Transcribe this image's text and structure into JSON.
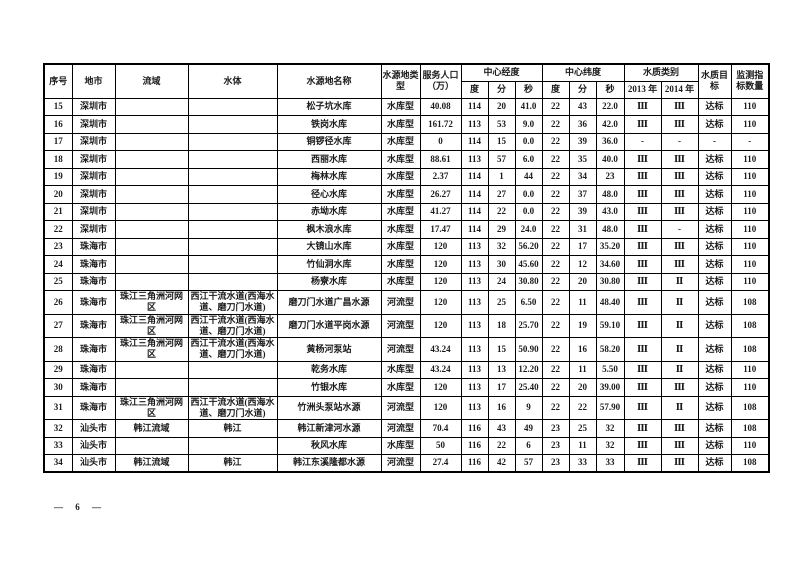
{
  "table": {
    "headers": {
      "no": "序号",
      "city": "地市",
      "basin": "流域",
      "water_body": "水体",
      "name": "水源地名称",
      "type": "水源地类型",
      "pop": "服务人口（万）",
      "longitude": "中心经度",
      "latitude": "中心纬度",
      "degree": "度",
      "minute": "分",
      "second": "秒",
      "quality": "水质类别",
      "y2013": "2013 年",
      "y2014": "2014 年",
      "target": "水质目标",
      "indicators": "监测指标数量"
    },
    "rows": [
      {
        "no": "15",
        "city": "深圳市",
        "basin": "",
        "water_body": "",
        "name": "松子坑水库",
        "type": "水库型",
        "pop": "40.08",
        "lon_d": "114",
        "lon_m": "20",
        "lon_s": "41.0",
        "lat_d": "22",
        "lat_m": "43",
        "lat_s": "22.0",
        "q2013": "Ⅲ",
        "q2014": "Ⅲ",
        "target": "达标",
        "indicators": "110"
      },
      {
        "no": "16",
        "city": "深圳市",
        "basin": "",
        "water_body": "",
        "name": "铁岗水库",
        "type": "水库型",
        "pop": "161.72",
        "lon_d": "113",
        "lon_m": "53",
        "lon_s": "9.0",
        "lat_d": "22",
        "lat_m": "36",
        "lat_s": "42.0",
        "q2013": "Ⅲ",
        "q2014": "Ⅲ",
        "target": "达标",
        "indicators": "110"
      },
      {
        "no": "17",
        "city": "深圳市",
        "basin": "",
        "water_body": "",
        "name": "铜锣径水库",
        "type": "水库型",
        "pop": "0",
        "lon_d": "114",
        "lon_m": "15",
        "lon_s": "0.0",
        "lat_d": "22",
        "lat_m": "39",
        "lat_s": "36.0",
        "q2013": "-",
        "q2014": "-",
        "target": "-",
        "indicators": "-"
      },
      {
        "no": "18",
        "city": "深圳市",
        "basin": "",
        "water_body": "",
        "name": "西丽水库",
        "type": "水库型",
        "pop": "88.61",
        "lon_d": "113",
        "lon_m": "57",
        "lon_s": "6.0",
        "lat_d": "22",
        "lat_m": "35",
        "lat_s": "40.0",
        "q2013": "Ⅲ",
        "q2014": "Ⅲ",
        "target": "达标",
        "indicators": "110"
      },
      {
        "no": "19",
        "city": "深圳市",
        "basin": "",
        "water_body": "",
        "name": "梅林水库",
        "type": "水库型",
        "pop": "2.37",
        "lon_d": "114",
        "lon_m": "1",
        "lon_s": "44",
        "lat_d": "22",
        "lat_m": "34",
        "lat_s": "23",
        "q2013": "Ⅲ",
        "q2014": "Ⅲ",
        "target": "达标",
        "indicators": "110"
      },
      {
        "no": "20",
        "city": "深圳市",
        "basin": "",
        "water_body": "",
        "name": "径心水库",
        "type": "水库型",
        "pop": "26.27",
        "lon_d": "114",
        "lon_m": "27",
        "lon_s": "0.0",
        "lat_d": "22",
        "lat_m": "37",
        "lat_s": "48.0",
        "q2013": "Ⅲ",
        "q2014": "Ⅲ",
        "target": "达标",
        "indicators": "110"
      },
      {
        "no": "21",
        "city": "深圳市",
        "basin": "",
        "water_body": "",
        "name": "赤坳水库",
        "type": "水库型",
        "pop": "41.27",
        "lon_d": "114",
        "lon_m": "22",
        "lon_s": "0.0",
        "lat_d": "22",
        "lat_m": "39",
        "lat_s": "43.0",
        "q2013": "Ⅲ",
        "q2014": "Ⅲ",
        "target": "达标",
        "indicators": "110"
      },
      {
        "no": "22",
        "city": "深圳市",
        "basin": "",
        "water_body": "",
        "name": "枫木浪水库",
        "type": "水库型",
        "pop": "17.47",
        "lon_d": "114",
        "lon_m": "29",
        "lon_s": "24.0",
        "lat_d": "22",
        "lat_m": "31",
        "lat_s": "48.0",
        "q2013": "Ⅲ",
        "q2014": "-",
        "target": "达标",
        "indicators": "110"
      },
      {
        "no": "23",
        "city": "珠海市",
        "basin": "",
        "water_body": "",
        "name": "大镜山水库",
        "type": "水库型",
        "pop": "120",
        "lon_d": "113",
        "lon_m": "32",
        "lon_s": "56.20",
        "lat_d": "22",
        "lat_m": "17",
        "lat_s": "35.20",
        "q2013": "Ⅲ",
        "q2014": "Ⅲ",
        "target": "达标",
        "indicators": "110"
      },
      {
        "no": "24",
        "city": "珠海市",
        "basin": "",
        "water_body": "",
        "name": "竹仙洞水库",
        "type": "水库型",
        "pop": "120",
        "lon_d": "113",
        "lon_m": "30",
        "lon_s": "45.60",
        "lat_d": "22",
        "lat_m": "12",
        "lat_s": "34.60",
        "q2013": "Ⅲ",
        "q2014": "Ⅲ",
        "target": "达标",
        "indicators": "110"
      },
      {
        "no": "25",
        "city": "珠海市",
        "basin": "",
        "water_body": "",
        "name": "杨寮水库",
        "type": "水库型",
        "pop": "120",
        "lon_d": "113",
        "lon_m": "24",
        "lon_s": "30.80",
        "lat_d": "22",
        "lat_m": "20",
        "lat_s": "30.80",
        "q2013": "Ⅲ",
        "q2014": "Ⅱ",
        "target": "达标",
        "indicators": "110"
      },
      {
        "no": "26",
        "city": "珠海市",
        "basin": "珠江三角洲河网区",
        "water_body": "西江干流水道(西海水道、磨刀门水道)",
        "name": "磨刀门水道广昌水源",
        "type": "河流型",
        "pop": "120",
        "lon_d": "113",
        "lon_m": "25",
        "lon_s": "6.50",
        "lat_d": "22",
        "lat_m": "11",
        "lat_s": "48.40",
        "q2013": "Ⅲ",
        "q2014": "Ⅱ",
        "target": "达标",
        "indicators": "108"
      },
      {
        "no": "27",
        "city": "珠海市",
        "basin": "珠江三角洲河网区",
        "water_body": "西江干流水道(西海水道、磨刀门水道)",
        "name": "磨刀门水道平岗水源",
        "type": "河流型",
        "pop": "120",
        "lon_d": "113",
        "lon_m": "18",
        "lon_s": "25.70",
        "lat_d": "22",
        "lat_m": "19",
        "lat_s": "59.10",
        "q2013": "Ⅲ",
        "q2014": "Ⅱ",
        "target": "达标",
        "indicators": "108"
      },
      {
        "no": "28",
        "city": "珠海市",
        "basin": "珠江三角洲河网区",
        "water_body": "西江干流水道(西海水道、磨刀门水道)",
        "name": "黄杨河泵站",
        "type": "河流型",
        "pop": "43.24",
        "lon_d": "113",
        "lon_m": "15",
        "lon_s": "50.90",
        "lat_d": "22",
        "lat_m": "16",
        "lat_s": "58.20",
        "q2013": "Ⅲ",
        "q2014": "Ⅱ",
        "target": "达标",
        "indicators": "108"
      },
      {
        "no": "29",
        "city": "珠海市",
        "basin": "",
        "water_body": "",
        "name": "乾务水库",
        "type": "水库型",
        "pop": "43.24",
        "lon_d": "113",
        "lon_m": "13",
        "lon_s": "12.20",
        "lat_d": "22",
        "lat_m": "11",
        "lat_s": "5.50",
        "q2013": "Ⅲ",
        "q2014": "Ⅱ",
        "target": "达标",
        "indicators": "110"
      },
      {
        "no": "30",
        "city": "珠海市",
        "basin": "",
        "water_body": "",
        "name": "竹银水库",
        "type": "水库型",
        "pop": "120",
        "lon_d": "113",
        "lon_m": "17",
        "lon_s": "25.40",
        "lat_d": "22",
        "lat_m": "20",
        "lat_s": "39.00",
        "q2013": "Ⅲ",
        "q2014": "Ⅲ",
        "target": "达标",
        "indicators": "110"
      },
      {
        "no": "31",
        "city": "珠海市",
        "basin": "珠江三角洲河网区",
        "water_body": "西江干流水道(西海水道、磨刀门水道)",
        "name": "竹洲头泵站水源",
        "type": "河流型",
        "pop": "120",
        "lon_d": "113",
        "lon_m": "16",
        "lon_s": "9",
        "lat_d": "22",
        "lat_m": "22",
        "lat_s": "57.90",
        "q2013": "Ⅲ",
        "q2014": "Ⅱ",
        "target": "达标",
        "indicators": "108"
      },
      {
        "no": "32",
        "city": "汕头市",
        "basin": "韩江流域",
        "water_body": "韩江",
        "name": "韩江新津河水源",
        "type": "河流型",
        "pop": "70.4",
        "lon_d": "116",
        "lon_m": "43",
        "lon_s": "49",
        "lat_d": "23",
        "lat_m": "25",
        "lat_s": "32",
        "q2013": "Ⅲ",
        "q2014": "Ⅲ",
        "target": "达标",
        "indicators": "108"
      },
      {
        "no": "33",
        "city": "汕头市",
        "basin": "",
        "water_body": "",
        "name": "秋风水库",
        "type": "水库型",
        "pop": "50",
        "lon_d": "116",
        "lon_m": "22",
        "lon_s": "6",
        "lat_d": "23",
        "lat_m": "11",
        "lat_s": "32",
        "q2013": "Ⅲ",
        "q2014": "Ⅲ",
        "target": "达标",
        "indicators": "110"
      },
      {
        "no": "34",
        "city": "汕头市",
        "basin": "韩江流域",
        "water_body": "韩江",
        "name": "韩江东溪隆都水源",
        "type": "河流型",
        "pop": "27.4",
        "lon_d": "116",
        "lon_m": "42",
        "lon_s": "57",
        "lat_d": "23",
        "lat_m": "33",
        "lat_s": "33",
        "q2013": "Ⅲ",
        "q2014": "Ⅲ",
        "target": "达标",
        "indicators": "108"
      }
    ]
  },
  "footer": {
    "left_dash": "—",
    "page_number": "6",
    "right_dash": "—"
  }
}
